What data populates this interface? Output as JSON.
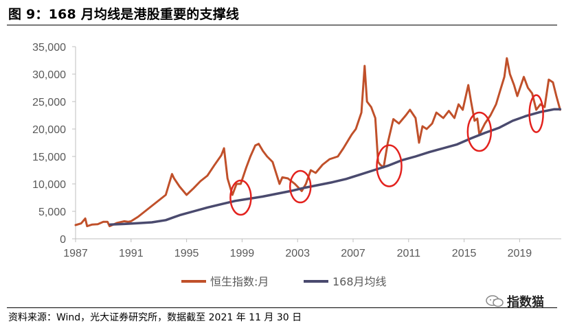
{
  "header": {
    "title": "图 9：168 月均线是港股重要的支撑线"
  },
  "footer": {
    "source": "资料来源：Wind，光大证券研究所，数据截至 2021 年 11 月 30 日",
    "watermark": "指数猫"
  },
  "chart_data": {
    "type": "line",
    "title": "",
    "xlabel": "",
    "ylabel": "",
    "xlim": [
      1987,
      2022
    ],
    "ylim": [
      0,
      35000
    ],
    "x_ticks": [
      "1987",
      "1991",
      "1995",
      "1999",
      "2003",
      "2007",
      "2011",
      "2015",
      "2019"
    ],
    "y_ticks": [
      "0",
      "5,000",
      "10,000",
      "15,000",
      "20,000",
      "25,000",
      "30,000",
      "35,000"
    ],
    "grid": false,
    "legend_position": "bottom",
    "colors": {
      "index": "#c0502a",
      "ma168": "#4a4a6e",
      "circle": "#e3221e"
    },
    "series": [
      {
        "name": "恒生指数:月",
        "x": [
          1987.0,
          1987.4,
          1987.7,
          1987.83,
          1988.2,
          1988.6,
          1989.0,
          1989.3,
          1989.45,
          1990.0,
          1990.5,
          1990.8,
          1991.0,
          1991.5,
          1992.0,
          1992.5,
          1993.0,
          1993.5,
          1993.95,
          1994.1,
          1994.5,
          1995.0,
          1995.5,
          1996.0,
          1996.5,
          1997.0,
          1997.5,
          1997.7,
          1997.95,
          1998.3,
          1998.6,
          1998.9,
          1999.3,
          1999.6,
          1999.95,
          2000.2,
          2000.5,
          2000.8,
          2001.2,
          2001.7,
          2001.9,
          2002.3,
          2002.8,
          2003.3,
          2003.6,
          2003.95,
          2004.3,
          2004.8,
          2005.3,
          2005.9,
          2006.3,
          2006.9,
          2007.2,
          2007.6,
          2007.83,
          2008.0,
          2008.3,
          2008.6,
          2008.8,
          2008.95,
          2009.2,
          2009.5,
          2009.9,
          2010.3,
          2010.8,
          2011.1,
          2011.5,
          2011.75,
          2012.0,
          2012.3,
          2012.7,
          2013.0,
          2013.5,
          2013.9,
          2014.3,
          2014.6,
          2014.9,
          2015.3,
          2015.5,
          2015.75,
          2015.95,
          2016.1,
          2016.5,
          2016.9,
          2017.3,
          2017.6,
          2017.9,
          2018.08,
          2018.3,
          2018.6,
          2018.83,
          2019.3,
          2019.6,
          2019.9,
          2020.2,
          2020.5,
          2020.8,
          2021.1,
          2021.4,
          2021.65,
          2021.92
        ],
        "values": [
          2500,
          2800,
          3700,
          2300,
          2600,
          2650,
          3100,
          3100,
          2300,
          2900,
          3200,
          3100,
          3200,
          4000,
          5000,
          6000,
          7000,
          8000,
          11800,
          11000,
          9500,
          8000,
          9200,
          10500,
          11500,
          13400,
          15200,
          16500,
          11000,
          8000,
          10000,
          10000,
          13000,
          15000,
          17000,
          17300,
          16000,
          15000,
          14000,
          10000,
          11200,
          11000,
          10000,
          8700,
          10000,
          12500,
          12000,
          13500,
          14500,
          15000,
          16500,
          19000,
          20000,
          23000,
          31500,
          25000,
          24000,
          22000,
          14000,
          13500,
          13000,
          17500,
          21800,
          21000,
          22500,
          23500,
          22000,
          17500,
          20500,
          20000,
          21000,
          23000,
          22000,
          23300,
          22000,
          24500,
          23500,
          28000,
          25000,
          21500,
          21900,
          19000,
          21000,
          22500,
          24500,
          27000,
          29500,
          32900,
          30000,
          28000,
          26000,
          29500,
          27500,
          26500,
          23500,
          24500,
          24000,
          29000,
          28500,
          26000,
          23500
        ]
      },
      {
        "name": "168月均线",
        "x": [
          1989.5,
          1990.5,
          1991.5,
          1992.5,
          1993.5,
          1994.5,
          1995.5,
          1996.5,
          1997.5,
          1998.5,
          1999.5,
          2000.5,
          2001.5,
          2002.5,
          2003.5,
          2004.5,
          2005.5,
          2006.5,
          2007.5,
          2008.5,
          2009.5,
          2010.5,
          2011.5,
          2012.5,
          2013.5,
          2014.5,
          2015.5,
          2016.5,
          2017.5,
          2018.5,
          2019.5,
          2020.5,
          2021.5,
          2021.92
        ],
        "values": [
          2600,
          2700,
          2850,
          3000,
          3400,
          4300,
          5000,
          5700,
          6300,
          6900,
          7300,
          7700,
          8200,
          8700,
          9300,
          9800,
          10300,
          10900,
          11700,
          12500,
          13300,
          14300,
          15000,
          15800,
          16500,
          17200,
          18300,
          19300,
          20200,
          21500,
          22400,
          23100,
          23600,
          23600
        ]
      }
    ],
    "annotations": {
      "circles": [
        {
          "x": 1998.9,
          "y": 7500
        },
        {
          "x": 2003.2,
          "y": 9500
        },
        {
          "x": 2009.6,
          "y": 13300
        },
        {
          "x": 2016.1,
          "y": 19500
        },
        {
          "x": 2020.2,
          "y": 22800
        }
      ]
    }
  }
}
